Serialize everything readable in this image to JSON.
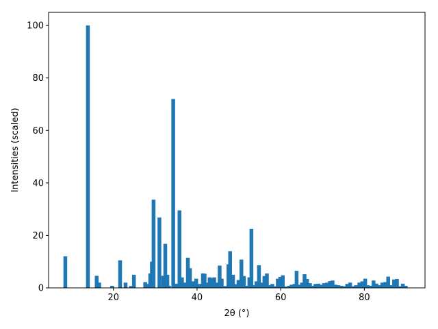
{
  "chart_data": {
    "type": "bar",
    "xlabel": "2θ (°)",
    "ylabel": "Intensities (scaled)",
    "xlim": [
      4.5,
      94.5
    ],
    "ylim": [
      0,
      105
    ],
    "xticks": [
      20,
      40,
      60,
      80
    ],
    "yticks": [
      0,
      20,
      40,
      60,
      80,
      100
    ],
    "bar_color": "#1f77b4",
    "bar_width": 0.9,
    "grid": false,
    "x": [
      8.5,
      13.9,
      16.0,
      16.6,
      19.7,
      21.6,
      22.9,
      24.2,
      24.9,
      27.6,
      28.1,
      28.8,
      29.2,
      29.6,
      31.0,
      31.9,
      32.4,
      32.9,
      33.3,
      34.3,
      34.9,
      35.8,
      36.4,
      37.1,
      37.8,
      38.3,
      39.1,
      39.8,
      40.6,
      41.4,
      41.8,
      42.4,
      43.0,
      43.6,
      44.1,
      44.8,
      45.4,
      45.9,
      46.6,
      47.5,
      47.9,
      48.6,
      49.3,
      49.9,
      50.6,
      51.2,
      51.8,
      52.5,
      53.0,
      53.6,
      54.2,
      54.8,
      55.4,
      56.1,
      56.7,
      57.3,
      58.0,
      58.6,
      59.3,
      59.9,
      60.5,
      61.2,
      62.0,
      62.6,
      63.3,
      63.8,
      64.5,
      65.1,
      65.7,
      66.3,
      67.0,
      67.6,
      68.3,
      69.0,
      69.7,
      70.4,
      71.1,
      71.8,
      72.4,
      73.1,
      73.8,
      74.5,
      75.2,
      75.9,
      76.6,
      77.3,
      78.0,
      78.8,
      79.5,
      80.2,
      80.8,
      81.5,
      82.2,
      82.9,
      83.6,
      84.3,
      85.0,
      85.7,
      86.4,
      87.1,
      87.8,
      88.5,
      89.2,
      89.9
    ],
    "values": [
      12.0,
      100.0,
      4.6,
      2.0,
      0.8,
      10.5,
      2.0,
      0.7,
      5.0,
      2.2,
      1.5,
      5.5,
      10.0,
      33.6,
      26.8,
      4.6,
      16.8,
      5.0,
      0.8,
      72.0,
      1.6,
      29.5,
      4.0,
      2.0,
      11.5,
      7.5,
      2.5,
      3.5,
      1.5,
      5.5,
      5.4,
      2.0,
      4.0,
      3.8,
      4.0,
      2.0,
      8.5,
      3.5,
      0.7,
      9.0,
      14.0,
      5.0,
      1.4,
      3.0,
      10.8,
      4.5,
      0.8,
      4.0,
      22.5,
      1.0,
      2.5,
      8.6,
      2.0,
      4.5,
      5.5,
      1.0,
      1.5,
      0.6,
      3.5,
      4.2,
      4.8,
      0.5,
      0.8,
      1.2,
      1.5,
      6.5,
      1.2,
      2.0,
      5.2,
      3.4,
      1.8,
      0.8,
      1.5,
      1.6,
      1.2,
      1.8,
      2.0,
      2.6,
      2.8,
      1.2,
      1.0,
      0.8,
      0.6,
      1.5,
      2.0,
      0.6,
      1.0,
      2.0,
      2.5,
      3.5,
      1.0,
      0.8,
      2.8,
      1.6,
      1.0,
      2.0,
      2.2,
      4.3,
      1.0,
      3.2,
      3.4,
      0.6,
      1.6,
      0.8
    ]
  }
}
